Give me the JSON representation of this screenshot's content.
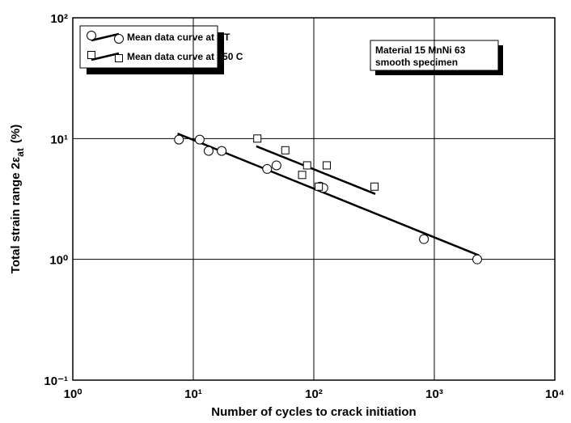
{
  "chart_data": {
    "type": "scatter",
    "xlabel": "Number of cycles to crack initiation",
    "ylabel": {
      "text": "Total strain range 2",
      "symbol": "ε",
      "subscript": "at",
      "unit": "(%)"
    },
    "xscale": "log",
    "yscale": "log",
    "grid": true,
    "xlim": [
      1,
      10000
    ],
    "ylim": [
      0.1,
      100
    ],
    "xticks": [
      {
        "value": 1,
        "label": "10⁰"
      },
      {
        "value": 10,
        "label": "10¹"
      },
      {
        "value": 100,
        "label": "10²"
      },
      {
        "value": 1000,
        "label": "10³"
      },
      {
        "value": 10000,
        "label": "10⁴"
      }
    ],
    "yticks": [
      {
        "value": 0.1,
        "label": "10⁻¹"
      },
      {
        "value": 1,
        "label": "10⁰"
      },
      {
        "value": 10,
        "label": "10¹"
      },
      {
        "value": 100,
        "label": "10²"
      }
    ],
    "legend": "upper left",
    "annotation": [
      "Material 15 MnNi 63",
      "smooth specimen"
    ],
    "series": [
      {
        "name": "Mean data curve at RT",
        "marker": "circle",
        "color": "#000000",
        "x": [
          7.6,
          11.3,
          13.4,
          17.2,
          41,
          49,
          113,
          120,
          820,
          2270
        ],
        "values": [
          9.8,
          9.8,
          7.9,
          7.9,
          5.6,
          6.0,
          4.0,
          3.9,
          1.47,
          1.0
        ],
        "fit": {
          "x": [
            7.4,
            2340
          ],
          "y": [
            11.0,
            1.08
          ]
        }
      },
      {
        "name": "Mean data curve at 250 C",
        "marker": "square",
        "color": "#000000",
        "x": [
          34,
          58,
          88,
          80,
          128,
          110,
          319
        ],
        "values": [
          10.0,
          8.0,
          6.0,
          5.0,
          6.0,
          4.0,
          4.0
        ],
        "fit": {
          "x": [
            33.3,
            324
          ],
          "y": [
            8.64,
            3.48
          ]
        }
      }
    ]
  }
}
